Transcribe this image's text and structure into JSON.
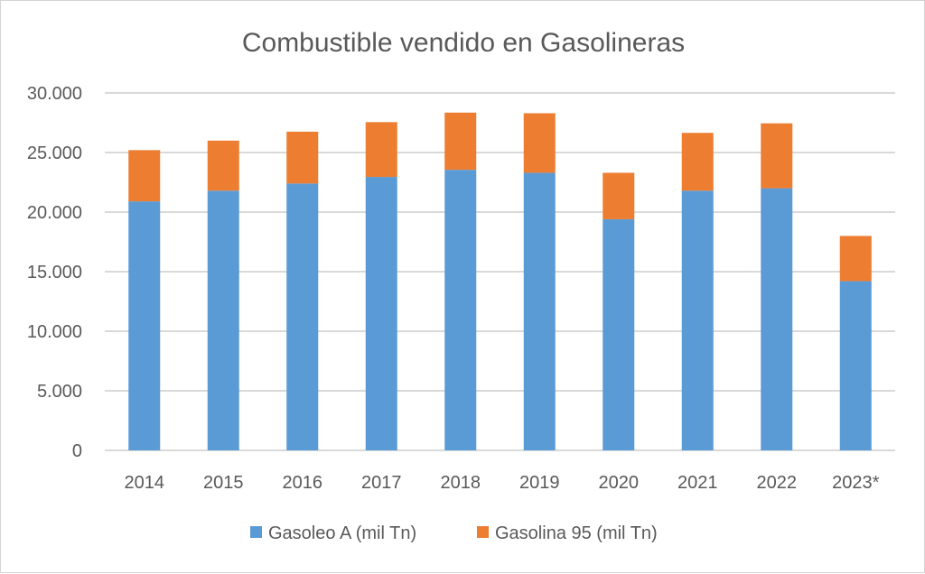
{
  "chart_data": {
    "type": "bar",
    "stacked": true,
    "title": "Combustible vendido en Gasolineras",
    "xlabel": "",
    "ylabel": "",
    "categories": [
      "2014",
      "2015",
      "2016",
      "2017",
      "2018",
      "2019",
      "2020",
      "2021",
      "2022",
      "2023*"
    ],
    "series": [
      {
        "name": "Gasoleo A (mil Tn)",
        "color": "#5b9bd5",
        "values": [
          20900,
          21800,
          22400,
          22950,
          23550,
          23300,
          19400,
          21800,
          22000,
          14200
        ]
      },
      {
        "name": "Gasolina 95 (mil Tn)",
        "color": "#ed7d31",
        "values": [
          4300,
          4200,
          4350,
          4600,
          4800,
          5000,
          3900,
          4850,
          5450,
          3800
        ]
      }
    ],
    "ylim": [
      0,
      30000
    ],
    "yticks": [
      {
        "value": 0,
        "label": "0"
      },
      {
        "value": 5000,
        "label": "5.000"
      },
      {
        "value": 10000,
        "label": "10.000"
      },
      {
        "value": 15000,
        "label": "15.000"
      },
      {
        "value": 20000,
        "label": "20.000"
      },
      {
        "value": 25000,
        "label": "25.000"
      },
      {
        "value": 30000,
        "label": "30.000"
      }
    ],
    "grid": true,
    "gridColor": "#d9d9d9",
    "legend": "bottom"
  }
}
